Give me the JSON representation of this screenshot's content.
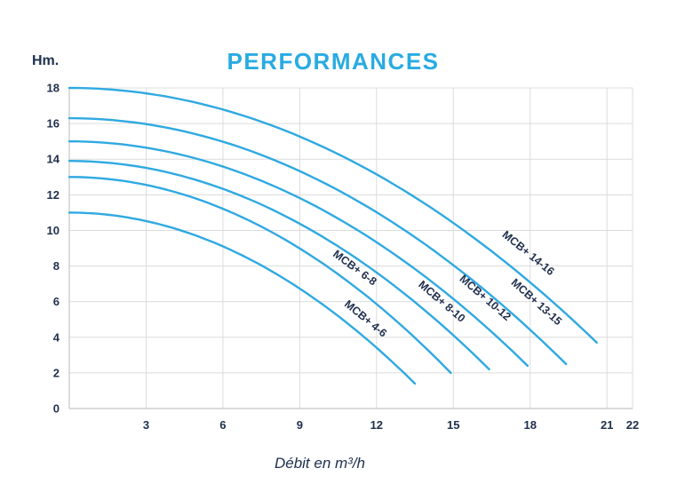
{
  "chart_data": {
    "type": "line",
    "title": "PERFORMANCES",
    "ylabel": "Hm.",
    "xlabel": "Débit en m³/h",
    "xlim": [
      0,
      22
    ],
    "ylim": [
      0,
      18
    ],
    "x_ticks": [
      3,
      6,
      9,
      12,
      15,
      18,
      21,
      22
    ],
    "y_ticks": [
      0,
      2,
      4,
      6,
      8,
      10,
      12,
      14,
      16,
      18
    ],
    "grid": true,
    "legend_position": "labels-on-curves",
    "colors": {
      "curve": "#2fa9e1",
      "grid": "#dcdcdc",
      "axis": "#c6c6c6",
      "title": "#29abe2",
      "text": "#21304e"
    },
    "series": [
      {
        "name": "MCB+ 4-6",
        "h0": 11.0,
        "qmax": 13.5,
        "hend": 1.4,
        "label_q": 11.2,
        "label_off": 13,
        "points": [
          [
            0,
            11.0
          ],
          [
            3,
            10.5
          ],
          [
            6,
            9.1
          ],
          [
            9,
            6.7
          ],
          [
            12,
            3.4
          ],
          [
            13.5,
            1.4
          ]
        ]
      },
      {
        "name": "MCB+ 6-8",
        "h0": 13.0,
        "qmax": 14.9,
        "hend": 2.0,
        "label_q": 10.8,
        "label_off": 13,
        "points": [
          [
            0,
            13.0
          ],
          [
            3,
            12.6
          ],
          [
            6,
            11.2
          ],
          [
            9,
            9.0
          ],
          [
            12,
            5.9
          ],
          [
            14.9,
            2.0
          ]
        ]
      },
      {
        "name": "MCB+ 8-10",
        "h0": 13.9,
        "qmax": 16.4,
        "hend": 2.2,
        "label_q": 14.1,
        "label_off": 16,
        "points": [
          [
            0,
            13.9
          ],
          [
            3,
            13.5
          ],
          [
            6,
            12.3
          ],
          [
            9,
            10.4
          ],
          [
            12,
            7.6
          ],
          [
            15,
            4.1
          ],
          [
            16.4,
            2.2
          ]
        ]
      },
      {
        "name": "MCB+ 10-12",
        "h0": 15.0,
        "qmax": 17.9,
        "hend": 2.4,
        "label_q": 15.7,
        "label_off": 20,
        "points": [
          [
            0,
            15.0
          ],
          [
            3,
            14.6
          ],
          [
            6,
            13.6
          ],
          [
            9,
            11.8
          ],
          [
            12,
            9.3
          ],
          [
            15,
            6.2
          ],
          [
            17.9,
            2.4
          ]
        ]
      },
      {
        "name": "MCB+ 13-15",
        "h0": 16.3,
        "qmax": 19.4,
        "hend": 2.5,
        "label_q": 17.6,
        "label_off": 24,
        "points": [
          [
            0,
            16.3
          ],
          [
            3,
            16.0
          ],
          [
            6,
            15.0
          ],
          [
            9,
            13.3
          ],
          [
            12,
            11.0
          ],
          [
            15,
            8.0
          ],
          [
            18,
            4.4
          ],
          [
            19.4,
            2.5
          ]
        ]
      },
      {
        "name": "MCB+ 14-16",
        "h0": 18.0,
        "qmax": 20.6,
        "hend": 3.7,
        "label_q": 17.4,
        "label_off": 20,
        "points": [
          [
            0,
            18.0
          ],
          [
            3,
            17.7
          ],
          [
            6,
            16.8
          ],
          [
            9,
            15.3
          ],
          [
            12,
            13.1
          ],
          [
            15,
            10.4
          ],
          [
            18,
            7.1
          ],
          [
            20.6,
            3.7
          ]
        ]
      }
    ]
  }
}
